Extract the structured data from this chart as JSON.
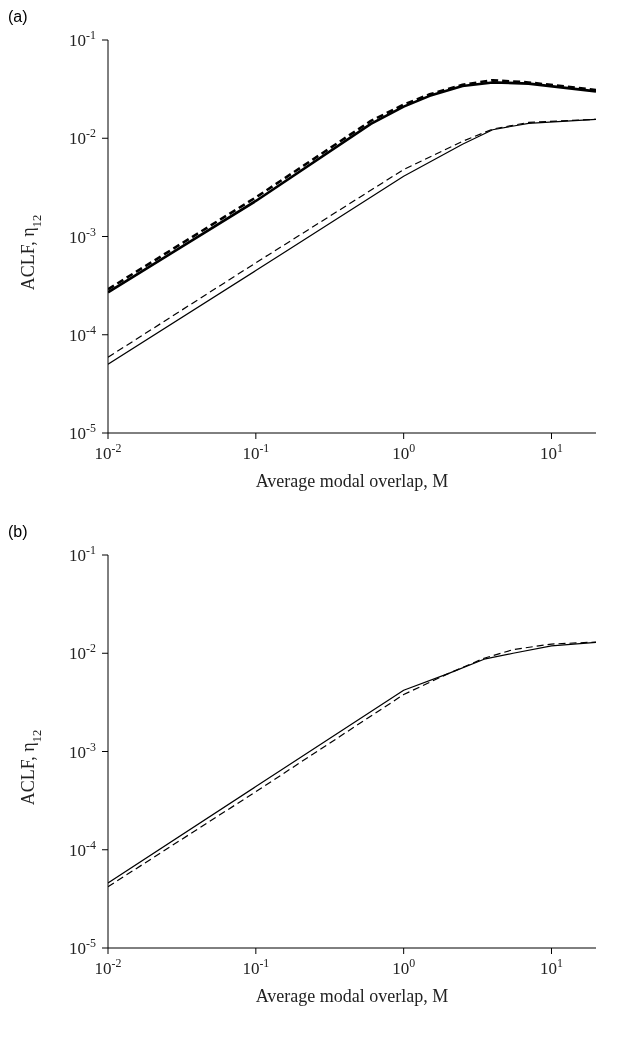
{
  "chart_data": [
    {
      "type": "line",
      "title": "(a)",
      "xlabel": "Average modal overlap, M",
      "ylabel": "ACLF, η$_{12}$",
      "log": "xy",
      "xlim": [
        0.01,
        20
      ],
      "ylim": [
        1e-05,
        0.1
      ],
      "xticks": [
        {
          "value": 0.01,
          "label": "10$^{-2}$"
        },
        {
          "value": 0.1,
          "label": "10$^{-1}$"
        },
        {
          "value": 1,
          "label": "10$^{0}$"
        },
        {
          "value": 10,
          "label": "10$^{1}$"
        }
      ],
      "yticks": [
        {
          "value": 1e-05,
          "label": "10$^{-5}$"
        },
        {
          "value": 0.0001,
          "label": "10$^{-4}$"
        },
        {
          "value": 0.001,
          "label": "10$^{-3}$"
        },
        {
          "value": 0.01,
          "label": "10$^{-2}$"
        },
        {
          "value": 0.1,
          "label": "10$^{-1}$"
        }
      ],
      "grid": false,
      "legend": false,
      "marker": "none",
      "series": [
        {
          "color": "#000000",
          "line_style": "solid",
          "x": [
            0.01,
            0.1,
            0.6,
            1,
            1.5,
            2.5,
            4,
            7,
            20
          ],
          "values": [
            0.00027,
            0.0023,
            0.014,
            0.021,
            0.027,
            0.034,
            0.037,
            0.036,
            0.03
          ]
        },
        {
          "color": "#000000",
          "line_style": "dashed",
          "x": [
            0.01,
            0.1,
            0.6,
            1,
            1.5,
            2.5,
            4,
            7,
            20
          ],
          "values": [
            0.00029,
            0.0025,
            0.015,
            0.022,
            0.028,
            0.035,
            0.039,
            0.037,
            0.031
          ]
        },
        {
          "color": "#000000",
          "line_style": "solid",
          "x": [
            0.01,
            0.1,
            1,
            2.5,
            4,
            7,
            20
          ],
          "values": [
            5e-05,
            0.00045,
            0.0041,
            0.0087,
            0.0122,
            0.0142,
            0.0156
          ]
        },
        {
          "color": "#000000",
          "line_style": "dashed",
          "x": [
            0.01,
            0.1,
            1,
            2.5,
            4,
            7,
            20
          ],
          "values": [
            5.9e-05,
            0.00054,
            0.0048,
            0.0093,
            0.0124,
            0.0145,
            0.0156
          ]
        }
      ]
    },
    {
      "type": "line",
      "title": "(b)",
      "xlabel": "Average modal overlap, M",
      "ylabel": "ACLF, η$_{12}$",
      "log": "xy",
      "xlim": [
        0.01,
        20
      ],
      "ylim": [
        1e-05,
        0.1
      ],
      "xticks": [
        {
          "value": 0.01,
          "label": "10$^{-2}$"
        },
        {
          "value": 0.1,
          "label": "10$^{-1}$"
        },
        {
          "value": 1,
          "label": "10$^{0}$"
        },
        {
          "value": 10,
          "label": "10$^{1}$"
        }
      ],
      "yticks": [
        {
          "value": 1e-05,
          "label": "10$^{-5}$"
        },
        {
          "value": 0.0001,
          "label": "10$^{-4}$"
        },
        {
          "value": 0.001,
          "label": "10$^{-3}$"
        },
        {
          "value": 0.01,
          "label": "10$^{-2}$"
        },
        {
          "value": 0.1,
          "label": "10$^{-1}$"
        }
      ],
      "grid": false,
      "legend": false,
      "marker": "none",
      "series": [
        {
          "color": "#000000",
          "line_style": "solid",
          "x": [
            0.01,
            0.1,
            1,
            2,
            3.5,
            5.5,
            10,
            20
          ],
          "values": [
            4.6e-05,
            0.00044,
            0.0042,
            0.0062,
            0.0087,
            0.01,
            0.0119,
            0.0129
          ]
        },
        {
          "color": "#000000",
          "line_style": "dashed",
          "x": [
            0.01,
            0.1,
            1,
            2,
            3.5,
            5.5,
            10,
            20
          ],
          "values": [
            4.2e-05,
            0.00039,
            0.0038,
            0.0062,
            0.0089,
            0.0109,
            0.0124,
            0.013
          ]
        }
      ]
    }
  ]
}
